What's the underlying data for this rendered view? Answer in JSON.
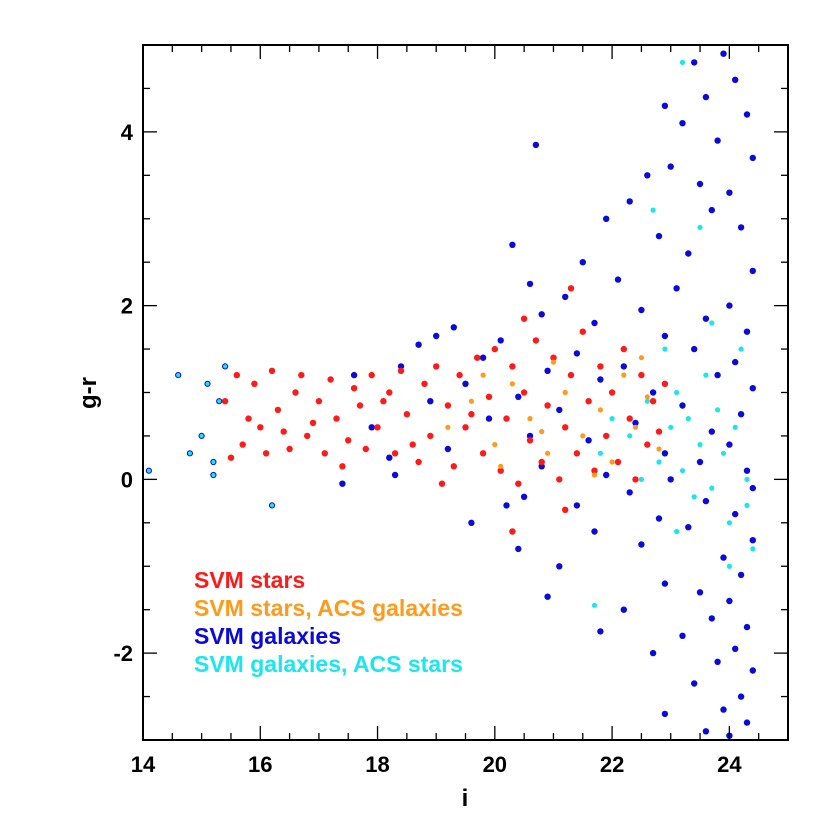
{
  "chart_data": {
    "type": "scatter",
    "title": "",
    "xlabel": "i",
    "ylabel": "g-r",
    "xlim": [
      14,
      25
    ],
    "ylim": [
      -3,
      5
    ],
    "x_ticks": [
      14,
      16,
      18,
      20,
      22,
      24
    ],
    "y_ticks": [
      -2,
      0,
      2,
      4
    ],
    "x_tick_labels": [
      "14",
      "16",
      "18",
      "20",
      "22",
      "24"
    ],
    "y_tick_labels": [
      "-2",
      "0",
      "2",
      "4"
    ],
    "grid": false,
    "legend_position": "lower-left",
    "series": [
      {
        "name": "SVM galaxies",
        "color": "#0a0adc",
        "marker": "filled-circle",
        "points": [
          [
            23.9,
            4.9
          ],
          [
            23.4,
            4.8
          ],
          [
            24.1,
            4.6
          ],
          [
            23.6,
            4.4
          ],
          [
            22.9,
            4.3
          ],
          [
            24.3,
            4.2
          ],
          [
            23.2,
            4.1
          ],
          [
            23.8,
            3.9
          ],
          [
            20.7,
            3.85
          ],
          [
            24.4,
            3.7
          ],
          [
            23.0,
            3.6
          ],
          [
            22.6,
            3.5
          ],
          [
            23.5,
            3.4
          ],
          [
            24.0,
            3.3
          ],
          [
            22.3,
            3.2
          ],
          [
            23.7,
            3.1
          ],
          [
            21.9,
            3.0
          ],
          [
            24.2,
            2.9
          ],
          [
            22.8,
            2.8
          ],
          [
            20.3,
            2.7
          ],
          [
            23.3,
            2.6
          ],
          [
            21.5,
            2.5
          ],
          [
            24.4,
            2.4
          ],
          [
            22.1,
            2.3
          ],
          [
            20.6,
            2.25
          ],
          [
            23.1,
            2.2
          ],
          [
            21.2,
            2.1
          ],
          [
            24.0,
            2.0
          ],
          [
            22.5,
            1.95
          ],
          [
            20.8,
            1.9
          ],
          [
            23.6,
            1.85
          ],
          [
            21.7,
            1.8
          ],
          [
            19.3,
            1.75
          ],
          [
            24.3,
            1.7
          ],
          [
            22.9,
            1.65
          ],
          [
            20.1,
            1.6
          ],
          [
            18.7,
            1.55
          ],
          [
            23.4,
            1.5
          ],
          [
            21.4,
            1.45
          ],
          [
            19.8,
            1.4
          ],
          [
            24.1,
            1.35
          ],
          [
            22.2,
            1.3
          ],
          [
            18.4,
            1.3
          ],
          [
            20.9,
            1.25
          ],
          [
            23.8,
            1.2
          ],
          [
            17.6,
            1.2
          ],
          [
            21.8,
            1.15
          ],
          [
            19.5,
            1.1
          ],
          [
            24.4,
            1.05
          ],
          [
            22.7,
            1.0
          ],
          [
            20.4,
            0.95
          ],
          [
            18.9,
            0.9
          ],
          [
            23.2,
            0.85
          ],
          [
            21.1,
            0.8
          ],
          [
            24.2,
            0.75
          ],
          [
            19.9,
            0.7
          ],
          [
            22.4,
            0.65
          ],
          [
            17.9,
            0.6
          ],
          [
            23.7,
            0.55
          ],
          [
            20.6,
            0.5
          ],
          [
            21.6,
            0.45
          ],
          [
            24.0,
            0.4
          ],
          [
            19.2,
            0.35
          ],
          [
            22.9,
            0.3
          ],
          [
            18.2,
            0.25
          ],
          [
            23.5,
            0.2
          ],
          [
            20.8,
            0.15
          ],
          [
            24.3,
            0.1
          ],
          [
            21.9,
            0.05
          ],
          [
            23.0,
            0.0
          ],
          [
            24.4,
            -0.1
          ],
          [
            22.3,
            -0.15
          ],
          [
            20.5,
            -0.2
          ],
          [
            23.6,
            -0.25
          ],
          [
            21.4,
            -0.3
          ],
          [
            24.1,
            -0.4
          ],
          [
            22.8,
            -0.45
          ],
          [
            19.6,
            -0.5
          ],
          [
            23.3,
            -0.55
          ],
          [
            21.7,
            -0.6
          ],
          [
            24.4,
            -0.7
          ],
          [
            22.5,
            -0.75
          ],
          [
            20.4,
            -0.8
          ],
          [
            23.9,
            -0.9
          ],
          [
            21.1,
            -1.0
          ],
          [
            24.2,
            -1.1
          ],
          [
            22.9,
            -1.2
          ],
          [
            23.5,
            -1.3
          ],
          [
            20.9,
            -1.35
          ],
          [
            24.0,
            -1.4
          ],
          [
            22.2,
            -1.5
          ],
          [
            23.7,
            -1.6
          ],
          [
            24.3,
            -1.7
          ],
          [
            21.8,
            -1.75
          ],
          [
            23.2,
            -1.8
          ],
          [
            24.1,
            -1.95
          ],
          [
            22.7,
            -2.0
          ],
          [
            23.8,
            -2.1
          ],
          [
            24.4,
            -2.2
          ],
          [
            23.4,
            -2.35
          ],
          [
            24.2,
            -2.5
          ],
          [
            23.9,
            -2.65
          ],
          [
            22.9,
            -2.7
          ],
          [
            24.3,
            -2.8
          ],
          [
            23.6,
            -2.9
          ],
          [
            24.0,
            -2.95
          ],
          [
            19.0,
            1.65
          ],
          [
            18.3,
            0.05
          ],
          [
            17.4,
            -0.05
          ],
          [
            20.2,
            -0.3
          ]
        ]
      },
      {
        "name": "SVM stars",
        "color": "#ff1a1a",
        "marker": "filled-circle",
        "points": [
          [
            15.4,
            0.9
          ],
          [
            15.6,
            1.2
          ],
          [
            15.7,
            0.4
          ],
          [
            15.9,
            1.1
          ],
          [
            16.0,
            0.6
          ],
          [
            16.1,
            0.3
          ],
          [
            16.2,
            1.25
          ],
          [
            16.3,
            0.8
          ],
          [
            16.5,
            0.35
          ],
          [
            16.6,
            1.0
          ],
          [
            16.7,
            1.2
          ],
          [
            16.8,
            0.5
          ],
          [
            17.0,
            0.9
          ],
          [
            17.1,
            0.3
          ],
          [
            17.2,
            1.15
          ],
          [
            17.3,
            0.7
          ],
          [
            17.5,
            0.45
          ],
          [
            17.6,
            1.05
          ],
          [
            17.8,
            0.35
          ],
          [
            17.9,
            1.2
          ],
          [
            18.0,
            0.6
          ],
          [
            18.1,
            0.9
          ],
          [
            18.3,
            0.3
          ],
          [
            18.4,
            1.25
          ],
          [
            18.5,
            0.75
          ],
          [
            18.7,
            0.2
          ],
          [
            18.8,
            1.1
          ],
          [
            18.9,
            0.5
          ],
          [
            19.0,
            1.3
          ],
          [
            19.2,
            0.85
          ],
          [
            19.3,
            0.15
          ],
          [
            19.4,
            1.2
          ],
          [
            19.5,
            0.6
          ],
          [
            19.7,
            1.4
          ],
          [
            19.8,
            0.3
          ],
          [
            19.9,
            0.95
          ],
          [
            20.0,
            1.5
          ],
          [
            20.1,
            0.1
          ],
          [
            20.2,
            0.7
          ],
          [
            20.3,
            1.3
          ],
          [
            20.4,
            -0.05
          ],
          [
            20.5,
            1.0
          ],
          [
            20.6,
            0.45
          ],
          [
            20.7,
            1.6
          ],
          [
            20.8,
            0.2
          ],
          [
            20.9,
            0.85
          ],
          [
            21.0,
            1.4
          ],
          [
            21.1,
            0.0
          ],
          [
            21.2,
            0.6
          ],
          [
            21.3,
            1.2
          ],
          [
            21.4,
            0.3
          ],
          [
            21.5,
            1.7
          ],
          [
            21.6,
            0.9
          ],
          [
            21.7,
            0.1
          ],
          [
            21.8,
            1.3
          ],
          [
            21.9,
            0.5
          ],
          [
            22.0,
            1.0
          ],
          [
            22.1,
            0.2
          ],
          [
            22.2,
            1.5
          ],
          [
            22.3,
            0.7
          ],
          [
            22.4,
            0.0
          ],
          [
            22.5,
            1.2
          ],
          [
            22.6,
            0.4
          ],
          [
            22.7,
            0.9
          ],
          [
            15.5,
            0.25
          ],
          [
            16.4,
            0.55
          ],
          [
            17.7,
            0.85
          ],
          [
            18.6,
            0.4
          ],
          [
            19.6,
            0.75
          ],
          [
            20.5,
            1.85
          ],
          [
            21.3,
            2.2
          ],
          [
            20.3,
            -0.6
          ],
          [
            19.1,
            -0.05
          ],
          [
            17.4,
            0.15
          ],
          [
            16.9,
            0.65
          ],
          [
            21.2,
            -0.35
          ],
          [
            22.8,
            0.55
          ],
          [
            22.9,
            1.1
          ],
          [
            18.2,
            1.0
          ],
          [
            15.8,
            0.7
          ]
        ]
      },
      {
        "name": "SVM stars, ACS galaxies",
        "color": "#ff9a1a",
        "marker": "small-filled-circle",
        "points": [
          [
            19.2,
            0.6
          ],
          [
            19.6,
            0.9
          ],
          [
            20.0,
            0.4
          ],
          [
            20.3,
            1.1
          ],
          [
            20.6,
            0.7
          ],
          [
            20.9,
            0.3
          ],
          [
            21.2,
            1.0
          ],
          [
            21.5,
            0.5
          ],
          [
            21.8,
            0.8
          ],
          [
            22.0,
            0.2
          ],
          [
            22.2,
            1.2
          ],
          [
            22.4,
            0.6
          ],
          [
            22.6,
            0.95
          ],
          [
            22.8,
            0.35
          ],
          [
            21.0,
            1.35
          ],
          [
            20.1,
            0.15
          ],
          [
            21.7,
            0.05
          ],
          [
            22.5,
            1.4
          ],
          [
            19.8,
            1.2
          ],
          [
            20.8,
            0.55
          ]
        ]
      },
      {
        "name": "SVM galaxies, ACS stars",
        "color": "#1ae6f0",
        "marker": "small-filled-circle",
        "points": [
          [
            14.1,
            0.1
          ],
          [
            14.6,
            1.2
          ],
          [
            14.8,
            0.3
          ],
          [
            15.0,
            0.5
          ],
          [
            15.1,
            1.1
          ],
          [
            15.2,
            0.2
          ],
          [
            15.3,
            0.9
          ],
          [
            15.4,
            1.3
          ],
          [
            15.2,
            0.05
          ],
          [
            16.2,
            -0.3
          ],
          [
            21.8,
            0.3
          ],
          [
            22.0,
            0.7
          ],
          [
            22.3,
            0.5
          ],
          [
            22.6,
            0.9
          ],
          [
            22.8,
            0.2
          ],
          [
            23.0,
            0.6
          ],
          [
            23.1,
            1.0
          ],
          [
            23.2,
            0.1
          ],
          [
            23.3,
            0.7
          ],
          [
            23.4,
            -0.2
          ],
          [
            23.5,
            0.4
          ],
          [
            23.6,
            1.2
          ],
          [
            23.7,
            -0.1
          ],
          [
            23.8,
            0.8
          ],
          [
            23.9,
            0.3
          ],
          [
            24.0,
            -0.5
          ],
          [
            24.1,
            0.6
          ],
          [
            24.2,
            1.5
          ],
          [
            24.3,
            0.0
          ],
          [
            24.4,
            -0.8
          ],
          [
            23.5,
            2.9
          ],
          [
            23.2,
            4.8
          ],
          [
            22.7,
            3.1
          ],
          [
            21.7,
            -1.45
          ],
          [
            24.0,
            -1.0
          ],
          [
            22.9,
            1.5
          ],
          [
            23.7,
            1.8
          ],
          [
            24.3,
            -0.3
          ],
          [
            23.1,
            -0.6
          ],
          [
            22.5,
            0.0
          ]
        ]
      }
    ]
  },
  "legend": [
    {
      "label": "SVM stars",
      "color": "#ff1a1a"
    },
    {
      "label": "SVM stars, ACS galaxies",
      "color": "#ff9a1a"
    },
    {
      "label": "SVM galaxies",
      "color": "#0a0adc"
    },
    {
      "label": "SVM galaxies, ACS stars",
      "color": "#1ae6f0"
    }
  ]
}
